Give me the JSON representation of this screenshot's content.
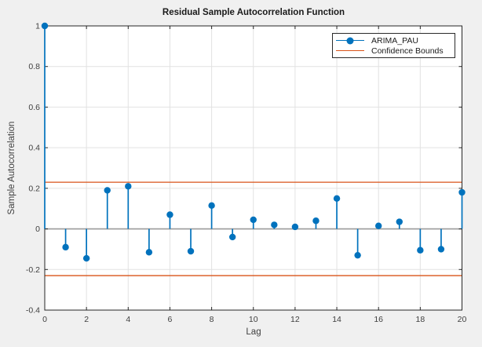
{
  "window": {
    "background": "#F0F0F0"
  },
  "chart_data": {
    "type": "stem",
    "title": "Residual Sample Autocorrelation Function",
    "xlabel": "Lag",
    "ylabel": "Sample Autocorrelation",
    "x": [
      0,
      1,
      2,
      3,
      4,
      5,
      6,
      7,
      8,
      9,
      10,
      11,
      12,
      13,
      14,
      15,
      16,
      17,
      18,
      19,
      20
    ],
    "values": [
      1.0,
      -0.09,
      -0.145,
      0.19,
      0.21,
      -0.115,
      0.07,
      -0.11,
      0.115,
      -0.04,
      0.045,
      0.02,
      0.01,
      0.04,
      0.15,
      -0.13,
      0.015,
      0.035,
      -0.105,
      -0.1,
      0.18
    ],
    "confidence_bounds": {
      "upper": 0.23,
      "lower": -0.23
    },
    "xlim": [
      0,
      20
    ],
    "ylim": [
      -0.4,
      1
    ],
    "xticks": [
      0,
      2,
      4,
      6,
      8,
      10,
      12,
      14,
      16,
      18,
      20
    ],
    "xtick_labels": [
      "0",
      "2",
      "4",
      "6",
      "8",
      "10",
      "12",
      "14",
      "16",
      "18",
      "20"
    ],
    "yticks": [
      -0.4,
      -0.2,
      0,
      0.2,
      0.4,
      0.6,
      0.8,
      1
    ],
    "ytick_labels": [
      "-0.4",
      "-0.2",
      "0",
      "0.2",
      "0.4",
      "0.6",
      "0.8",
      "1"
    ],
    "grid": true,
    "legend": {
      "position": "top-right",
      "entries": [
        {
          "label": "ARIMA_PAU",
          "color": "#0072BD",
          "marker": "circle"
        },
        {
          "label": "Confidence Bounds",
          "color": "#D95319",
          "marker": "none"
        }
      ]
    },
    "colors": {
      "stem": "#0072BD",
      "confidence": "#D95319",
      "baseline": "#9B9B9B",
      "grid": "#E2E2E2",
      "axis": "#262626",
      "text": "#404040",
      "title": "#1A1A1A",
      "plot_background": "#FFFFFF",
      "figure_background": "#F0F0F0"
    }
  }
}
